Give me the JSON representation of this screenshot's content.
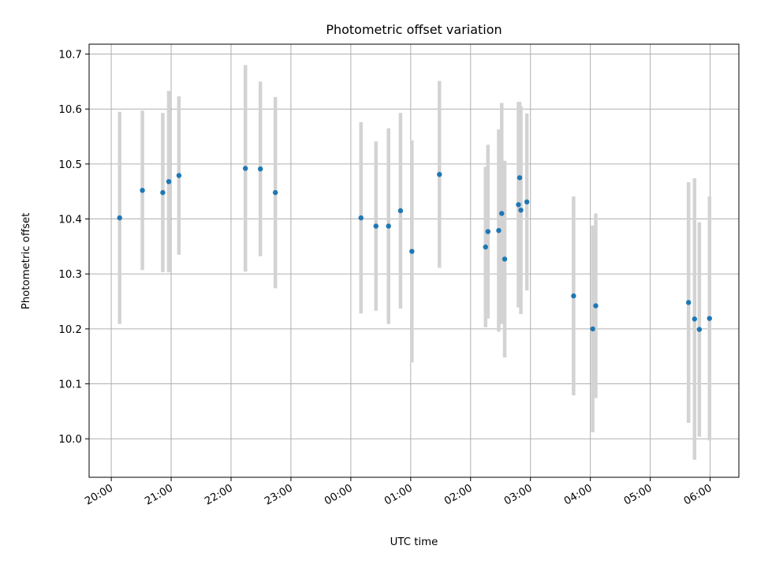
{
  "chart_data": {
    "type": "scatter",
    "title": "Photometric offset variation",
    "xlabel": "UTC time",
    "ylabel": "Photometric offset",
    "x_ticks": [
      "20:00",
      "21:00",
      "22:00",
      "23:00",
      "00:00",
      "01:00",
      "02:00",
      "03:00",
      "04:00",
      "05:00",
      "06:00"
    ],
    "y_ticks": [
      "10.0",
      "10.1",
      "10.2",
      "10.3",
      "10.4",
      "10.5",
      "10.6",
      "10.7"
    ],
    "x_tick_hours": [
      0,
      1,
      2,
      3,
      4,
      5,
      6,
      7,
      8,
      9,
      10
    ],
    "x_axis_start": "20:00 UTC",
    "xlim": [
      -0.37,
      10.48
    ],
    "ylim": [
      9.93,
      10.718
    ],
    "grid": true,
    "point_color": "#1f77b4",
    "errorbar_color": "#d3d3d3",
    "series": [
      {
        "points": [
          {
            "x": 0.14,
            "y": 10.402,
            "err": 0.193
          },
          {
            "x": 0.52,
            "y": 10.452,
            "err": 0.145
          },
          {
            "x": 0.86,
            "y": 10.448,
            "err": 0.145
          },
          {
            "x": 0.96,
            "y": 10.468,
            "err": 0.165
          },
          {
            "x": 1.13,
            "y": 10.479,
            "err": 0.144
          },
          {
            "x": 2.24,
            "y": 10.492,
            "err": 0.188
          },
          {
            "x": 2.49,
            "y": 10.491,
            "err": 0.159
          },
          {
            "x": 2.74,
            "y": 10.448,
            "err": 0.174
          },
          {
            "x": 4.17,
            "y": 10.402,
            "err": 0.174
          },
          {
            "x": 4.42,
            "y": 10.387,
            "err": 0.154
          },
          {
            "x": 4.63,
            "y": 10.387,
            "err": 0.178
          },
          {
            "x": 4.83,
            "y": 10.415,
            "err": 0.178
          },
          {
            "x": 5.02,
            "y": 10.341,
            "err": 0.202
          },
          {
            "x": 5.48,
            "y": 10.481,
            "err": 0.17
          },
          {
            "x": 6.25,
            "y": 10.349,
            "err": 0.146
          },
          {
            "x": 6.29,
            "y": 10.377,
            "err": 0.158
          },
          {
            "x": 6.47,
            "y": 10.379,
            "err": 0.184
          },
          {
            "x": 6.52,
            "y": 10.41,
            "err": 0.201
          },
          {
            "x": 6.57,
            "y": 10.327,
            "err": 0.179
          },
          {
            "x": 6.8,
            "y": 10.426,
            "err": 0.187
          },
          {
            "x": 6.82,
            "y": 10.475,
            "err": 0.138
          },
          {
            "x": 6.84,
            "y": 10.416,
            "err": 0.189
          },
          {
            "x": 6.94,
            "y": 10.431,
            "err": 0.161
          },
          {
            "x": 7.72,
            "y": 10.26,
            "err": 0.181
          },
          {
            "x": 8.04,
            "y": 10.2,
            "err": 0.188
          },
          {
            "x": 8.09,
            "y": 10.242,
            "err": 0.168
          },
          {
            "x": 9.64,
            "y": 10.248,
            "err": 0.219
          },
          {
            "x": 9.74,
            "y": 10.218,
            "err": 0.256
          },
          {
            "x": 9.82,
            "y": 10.199,
            "err": 0.195
          },
          {
            "x": 9.99,
            "y": 10.219,
            "err": 0.222
          }
        ]
      }
    ]
  }
}
